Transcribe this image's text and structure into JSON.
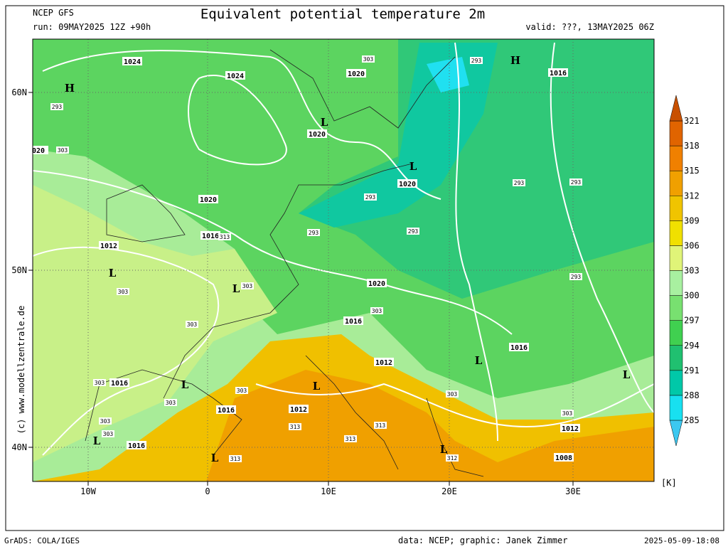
{
  "header": {
    "model": "NCEP GFS",
    "title": "Equivalent potential temperature 2m",
    "run": "run: 09MAY2025 12Z +90h",
    "valid": "valid: ???, 13MAY2025 06Z"
  },
  "map": {
    "lat_labels": [
      "60N",
      "50N",
      "40N"
    ],
    "lon_labels": [
      "10W",
      "0",
      "10E",
      "20E",
      "30E"
    ],
    "pressure_labels": [
      "1024",
      "1024",
      "1020",
      "1020",
      "1016",
      "1020",
      "1020",
      "1016",
      "1012",
      "1020",
      "1016",
      "1012",
      "1016",
      "1016",
      "1016",
      "1012",
      "1012",
      "1016",
      "1008",
      "020"
    ],
    "theta_labels": [
      "293",
      "303",
      "303",
      "293",
      "293",
      "293",
      "293",
      "293",
      "313",
      "303",
      "293",
      "293",
      "303",
      "303",
      "303",
      "303",
      "303",
      "303",
      "303",
      "303",
      "303",
      "303",
      "313",
      "313",
      "313",
      "313",
      "312"
    ],
    "centers": [
      "H",
      "H",
      "L",
      "L",
      "L",
      "L",
      "L",
      "L",
      "L",
      "L",
      "L",
      "L",
      "L"
    ]
  },
  "colorbar": {
    "unit": "[K]",
    "ticks": [
      285,
      288,
      291,
      294,
      297,
      300,
      303,
      306,
      309,
      312,
      315,
      318,
      321
    ],
    "colors": [
      "#3cc8f0",
      "#18e0f0",
      "#00c8a8",
      "#20c070",
      "#40d050",
      "#78e070",
      "#a8f0a0",
      "#e0f478",
      "#f0e000",
      "#f0c400",
      "#f0a000",
      "#f08000",
      "#e06400",
      "#c85000"
    ]
  },
  "watermark": "(c) www.modellzentrale.de",
  "footer": {
    "left": "GrADS: COLA/IGES",
    "data": "data: NCEP; graphic: Janek Zimmer",
    "timestamp": "2025-05-09-18:08"
  }
}
